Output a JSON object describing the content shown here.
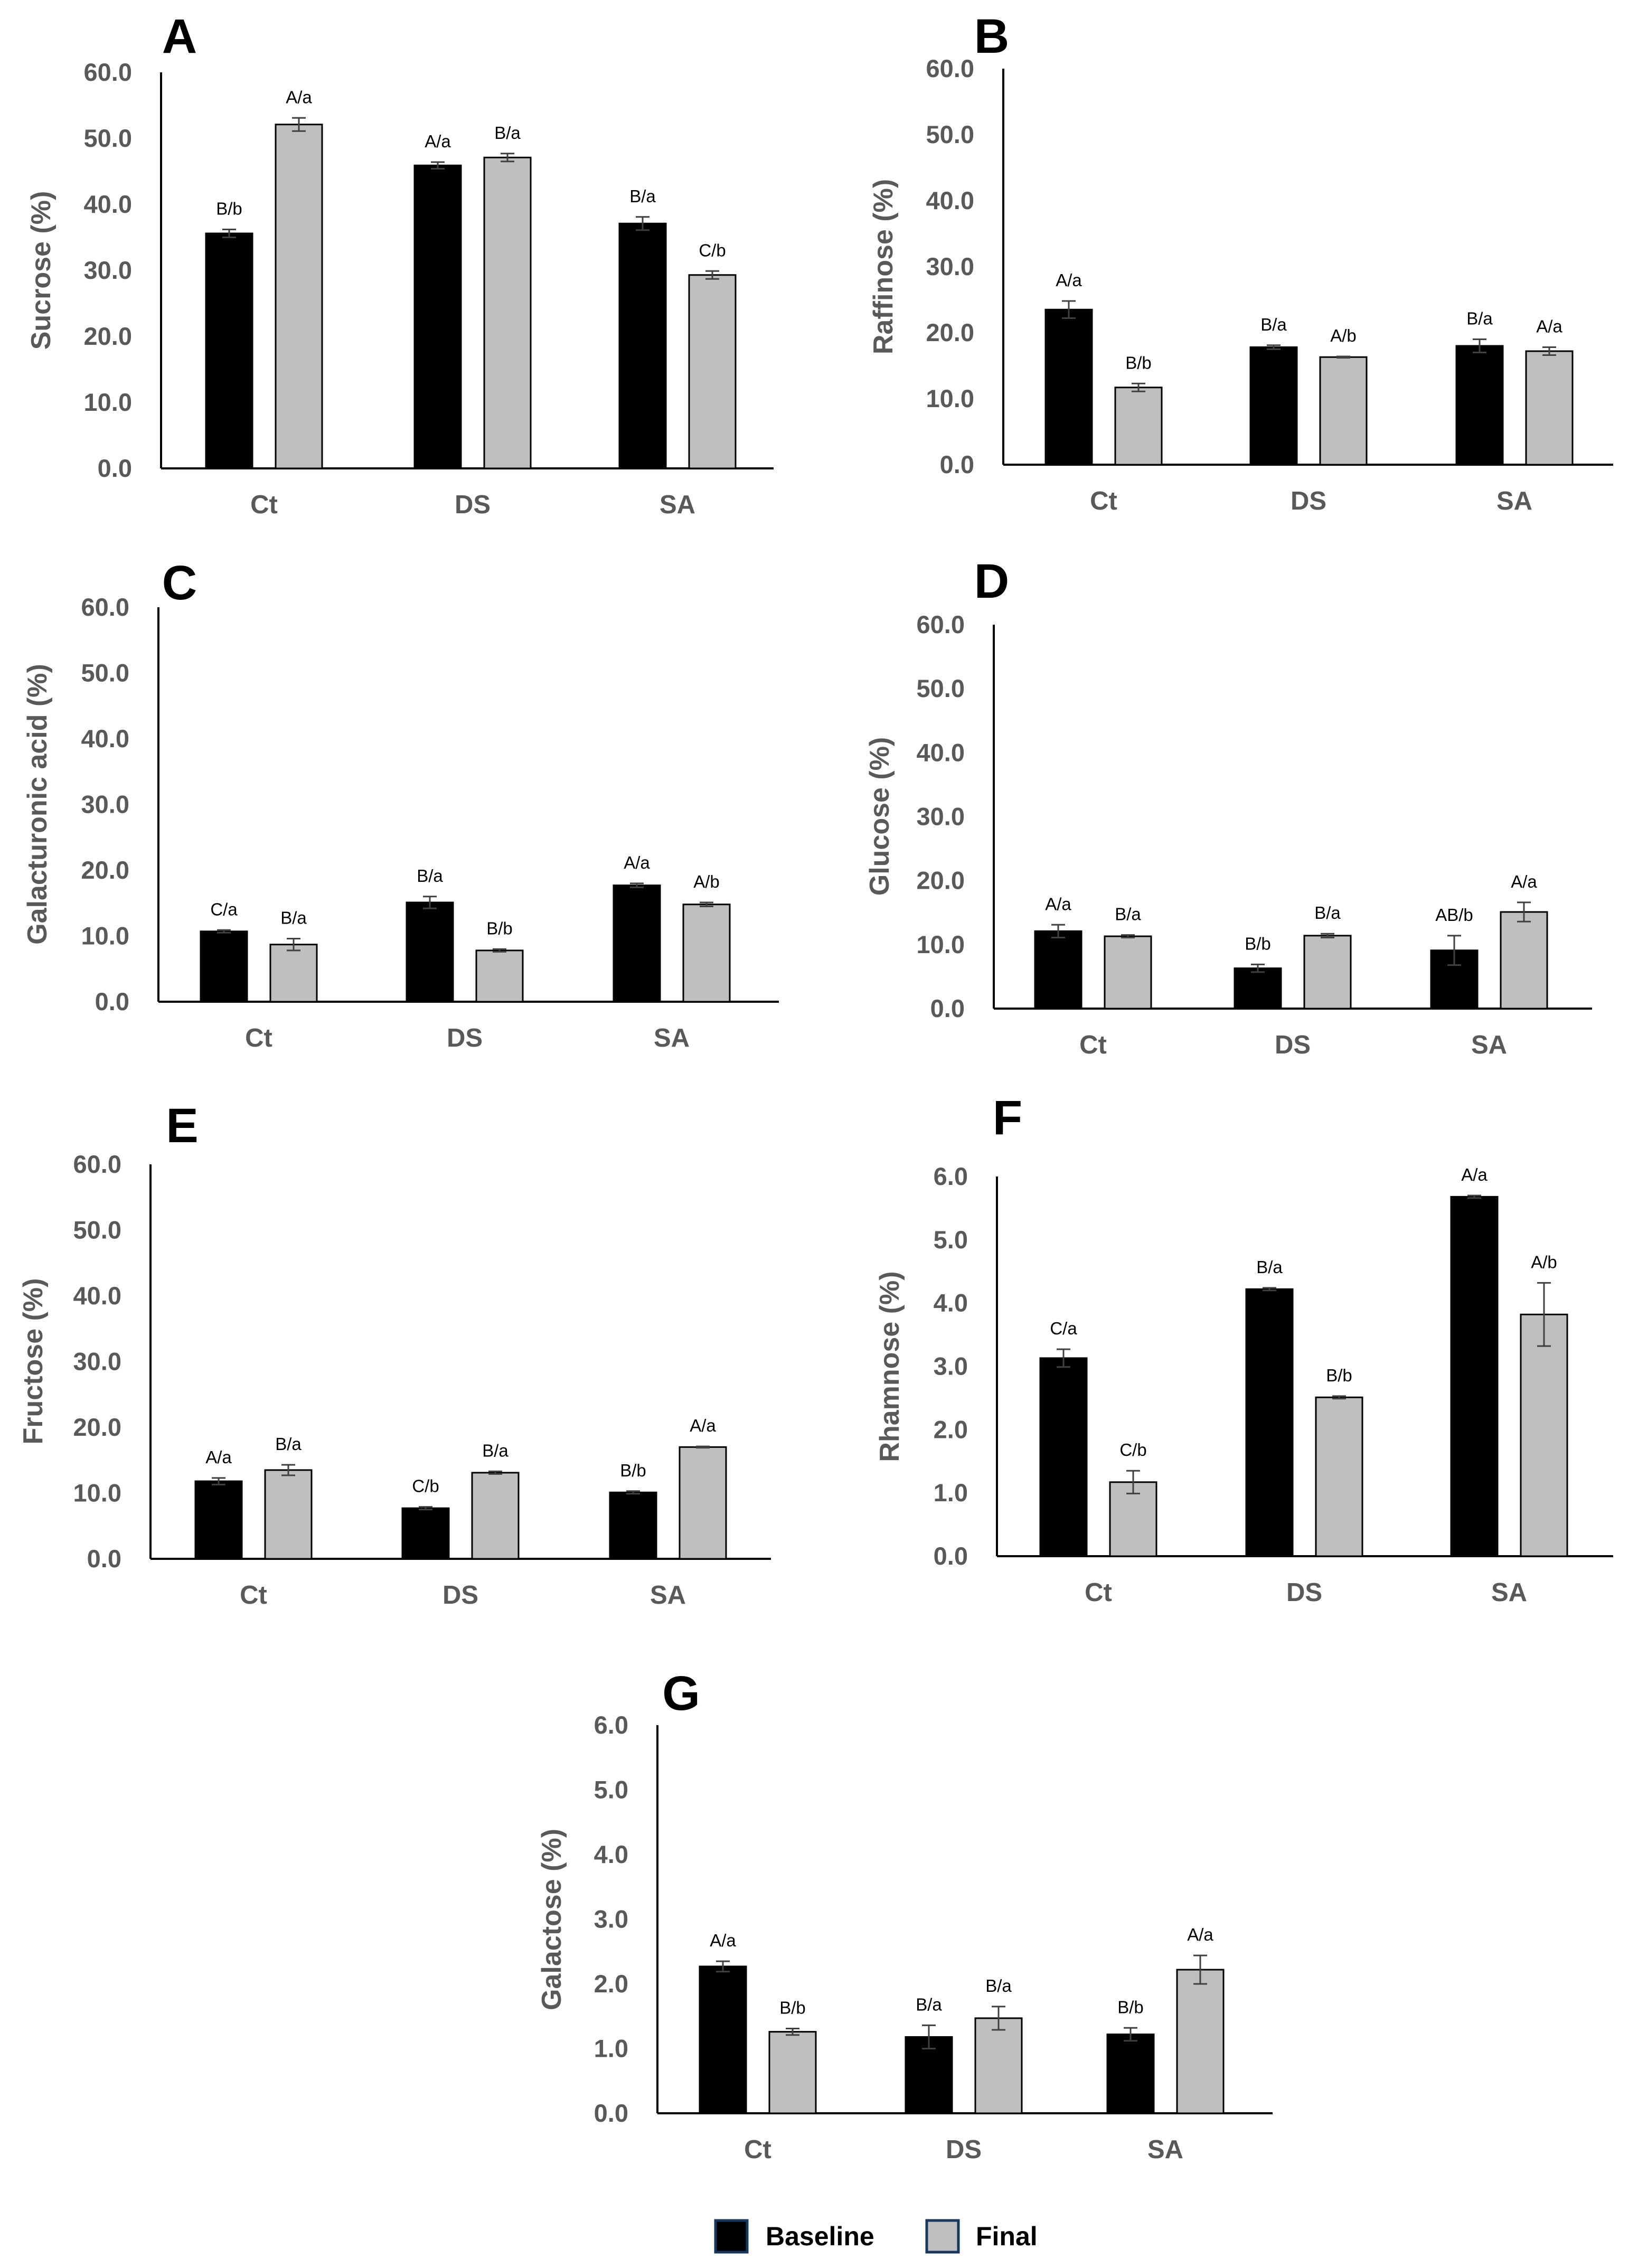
{
  "legend": {
    "items": [
      {
        "label": "Baseline",
        "color": "#000000"
      },
      {
        "label": "Final",
        "color": "#BFBFBF"
      }
    ]
  },
  "chart_data": [
    {
      "panel": "A",
      "type": "bar",
      "ylabel": "Sucrose (%)",
      "ylim": [
        0,
        60
      ],
      "ticks": [
        "0.0",
        "10.0",
        "20.0",
        "30.0",
        "40.0",
        "50.0",
        "60.0"
      ],
      "categories": [
        "Ct",
        "DS",
        "SA"
      ],
      "series": [
        {
          "name": "Baseline",
          "values": [
            35.6,
            45.9,
            37.1
          ],
          "errors": [
            0.6,
            0.5,
            1.0
          ],
          "labels": [
            "B/b",
            "A/a",
            "B/a"
          ]
        },
        {
          "name": "Final",
          "values": [
            52.1,
            47.1,
            29.3
          ],
          "errors": [
            1.0,
            0.6,
            0.6
          ],
          "labels": [
            "A/a",
            "B/a",
            "C/b"
          ]
        }
      ]
    },
    {
      "panel": "B",
      "type": "bar",
      "ylabel": "Raffinose (%)",
      "ylim": [
        0,
        60
      ],
      "ticks": [
        "0.0",
        "10.0",
        "20.0",
        "30.0",
        "40.0",
        "50.0",
        "60.0"
      ],
      "categories": [
        "Ct",
        "DS",
        "SA"
      ],
      "series": [
        {
          "name": "Baseline",
          "values": [
            23.5,
            17.8,
            18.0
          ],
          "errors": [
            1.3,
            0.3,
            1.0
          ],
          "labels": [
            "A/a",
            "B/a",
            "B/a"
          ]
        },
        {
          "name": "Final",
          "values": [
            11.7,
            16.3,
            17.2
          ],
          "errors": [
            0.6,
            0.1,
            0.6
          ],
          "labels": [
            "B/b",
            "A/b",
            "A/a"
          ]
        }
      ]
    },
    {
      "panel": "C",
      "type": "bar",
      "ylabel": "Galacturonic acid (%)",
      "ylim": [
        0,
        60
      ],
      "ticks": [
        "0.0",
        "10.0",
        "20.0",
        "30.0",
        "40.0",
        "50.0",
        "60.0"
      ],
      "categories": [
        "Ct",
        "DS",
        "SA"
      ],
      "series": [
        {
          "name": "Baseline",
          "values": [
            10.7,
            15.1,
            17.7
          ],
          "errors": [
            0.2,
            0.9,
            0.3
          ],
          "labels": [
            "C/a",
            "B/a",
            "A/a"
          ]
        },
        {
          "name": "Final",
          "values": [
            8.7,
            7.8,
            14.8
          ],
          "errors": [
            0.9,
            0.2,
            0.3
          ],
          "labels": [
            "B/a",
            "B/b",
            "A/b"
          ]
        }
      ]
    },
    {
      "panel": "D",
      "type": "bar",
      "ylabel": "Glucose (%)",
      "ylim": [
        0,
        60
      ],
      "ticks": [
        "0.0",
        "10.0",
        "20.0",
        "30.0",
        "40.0",
        "50.0",
        "60.0"
      ],
      "categories": [
        "Ct",
        "DS",
        "SA"
      ],
      "series": [
        {
          "name": "Baseline",
          "values": [
            12.1,
            6.3,
            9.1
          ],
          "errors": [
            1.0,
            0.6,
            2.3
          ],
          "labels": [
            "A/a",
            "B/b",
            "AB/b"
          ]
        },
        {
          "name": "Final",
          "values": [
            11.3,
            11.4,
            15.1
          ],
          "errors": [
            0.2,
            0.3,
            1.5
          ],
          "labels": [
            "B/a",
            "B/a",
            "A/a"
          ]
        }
      ]
    },
    {
      "panel": "E",
      "type": "bar",
      "ylabel": "Fructose (%)",
      "ylim": [
        0,
        60
      ],
      "ticks": [
        "0.0",
        "10.0",
        "20.0",
        "30.0",
        "40.0",
        "50.0",
        "60.0"
      ],
      "categories": [
        "Ct",
        "DS",
        "SA"
      ],
      "series": [
        {
          "name": "Baseline",
          "values": [
            11.8,
            7.7,
            10.1
          ],
          "errors": [
            0.5,
            0.2,
            0.2
          ],
          "labels": [
            "A/a",
            "C/b",
            "B/b"
          ]
        },
        {
          "name": "Final",
          "values": [
            13.5,
            13.1,
            17.0
          ],
          "errors": [
            0.8,
            0.2,
            0.1
          ],
          "labels": [
            "B/a",
            "B/a",
            "A/a"
          ]
        }
      ]
    },
    {
      "panel": "F",
      "type": "bar",
      "ylabel": "Rhamnose (%)",
      "ylim": [
        0,
        6
      ],
      "ticks": [
        "0.0",
        "1.0",
        "2.0",
        "3.0",
        "4.0",
        "5.0",
        "6.0"
      ],
      "categories": [
        "Ct",
        "DS",
        "SA"
      ],
      "series": [
        {
          "name": "Baseline",
          "values": [
            3.13,
            4.22,
            5.68
          ],
          "errors": [
            0.14,
            0.02,
            0.02
          ],
          "labels": [
            "C/a",
            "B/a",
            "A/a"
          ]
        },
        {
          "name": "Final",
          "values": [
            1.17,
            2.51,
            3.82
          ],
          "errors": [
            0.18,
            0.02,
            0.5
          ],
          "labels": [
            "C/b",
            "B/b",
            "A/b"
          ]
        }
      ]
    },
    {
      "panel": "G",
      "type": "bar",
      "ylabel": "Galactose (%)",
      "ylim": [
        0,
        6
      ],
      "ticks": [
        "0.0",
        "1.0",
        "2.0",
        "3.0",
        "4.0",
        "5.0",
        "6.0"
      ],
      "categories": [
        "Ct",
        "DS",
        "SA"
      ],
      "series": [
        {
          "name": "Baseline",
          "values": [
            2.27,
            1.18,
            1.22
          ],
          "errors": [
            0.08,
            0.18,
            0.1
          ],
          "labels": [
            "A/a",
            "B/a",
            "B/b"
          ]
        },
        {
          "name": "Final",
          "values": [
            1.26,
            1.47,
            2.22
          ],
          "errors": [
            0.05,
            0.18,
            0.22
          ],
          "labels": [
            "B/b",
            "B/a",
            "A/a"
          ]
        }
      ]
    }
  ]
}
